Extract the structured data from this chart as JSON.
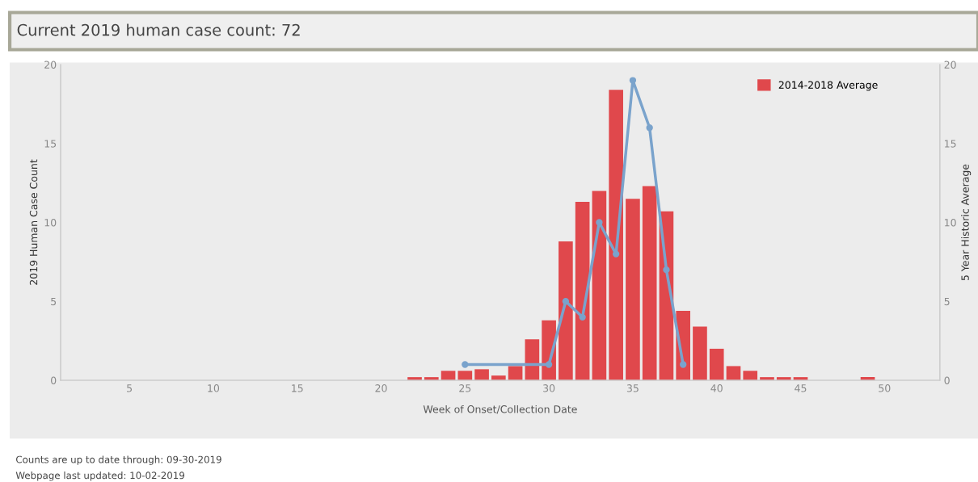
{
  "chart_data": {
    "type": "bar",
    "title": "Current 2019 human case count: 72",
    "xlabel": "Week of Onset/Collection Date",
    "ylabel": "2019 Human Case Count",
    "y2label": "5 Year Historic Average",
    "x": [
      22,
      23,
      24,
      25,
      26,
      27,
      28,
      29,
      30,
      31,
      32,
      33,
      34,
      35,
      36,
      37,
      38,
      39,
      40,
      41,
      42,
      43,
      44,
      45,
      49
    ],
    "series": [
      {
        "name": "2014-2018 Average",
        "axis": "y2",
        "color": "#e0484c",
        "values": [
          0.2,
          0.2,
          0.6,
          0.6,
          0.7,
          0.3,
          0.9,
          2.6,
          3.8,
          8.8,
          11.3,
          12.0,
          18.4,
          11.5,
          12.3,
          10.7,
          4.4,
          3.4,
          2.0,
          0.9,
          0.6,
          0.2,
          0.2,
          0.2,
          0.2
        ]
      },
      {
        "type": "line",
        "axis": "y",
        "color": "#7aa3cc",
        "x": [
          25,
          30,
          31,
          32,
          33,
          34,
          35,
          36,
          37,
          38
        ],
        "values": [
          1,
          1,
          5,
          4,
          10,
          8,
          19,
          16,
          7,
          1
        ]
      }
    ],
    "xlim": [
      0.9,
      53.3
    ],
    "xticks": [
      5,
      10,
      15,
      20,
      25,
      30,
      35,
      40,
      45,
      50
    ],
    "ylim": [
      0,
      20
    ],
    "yticks": [
      0,
      5,
      10,
      15,
      20
    ],
    "y2lim": [
      0,
      20
    ],
    "y2ticks": [
      0,
      5,
      10,
      15,
      20
    ],
    "marker": "circle",
    "line_style": "solid",
    "grid": false,
    "legend": "top right",
    "annotations": [
      "Counts are up to date through: 09-30-2019",
      "Webpage last updated: 10-02-2019"
    ]
  }
}
